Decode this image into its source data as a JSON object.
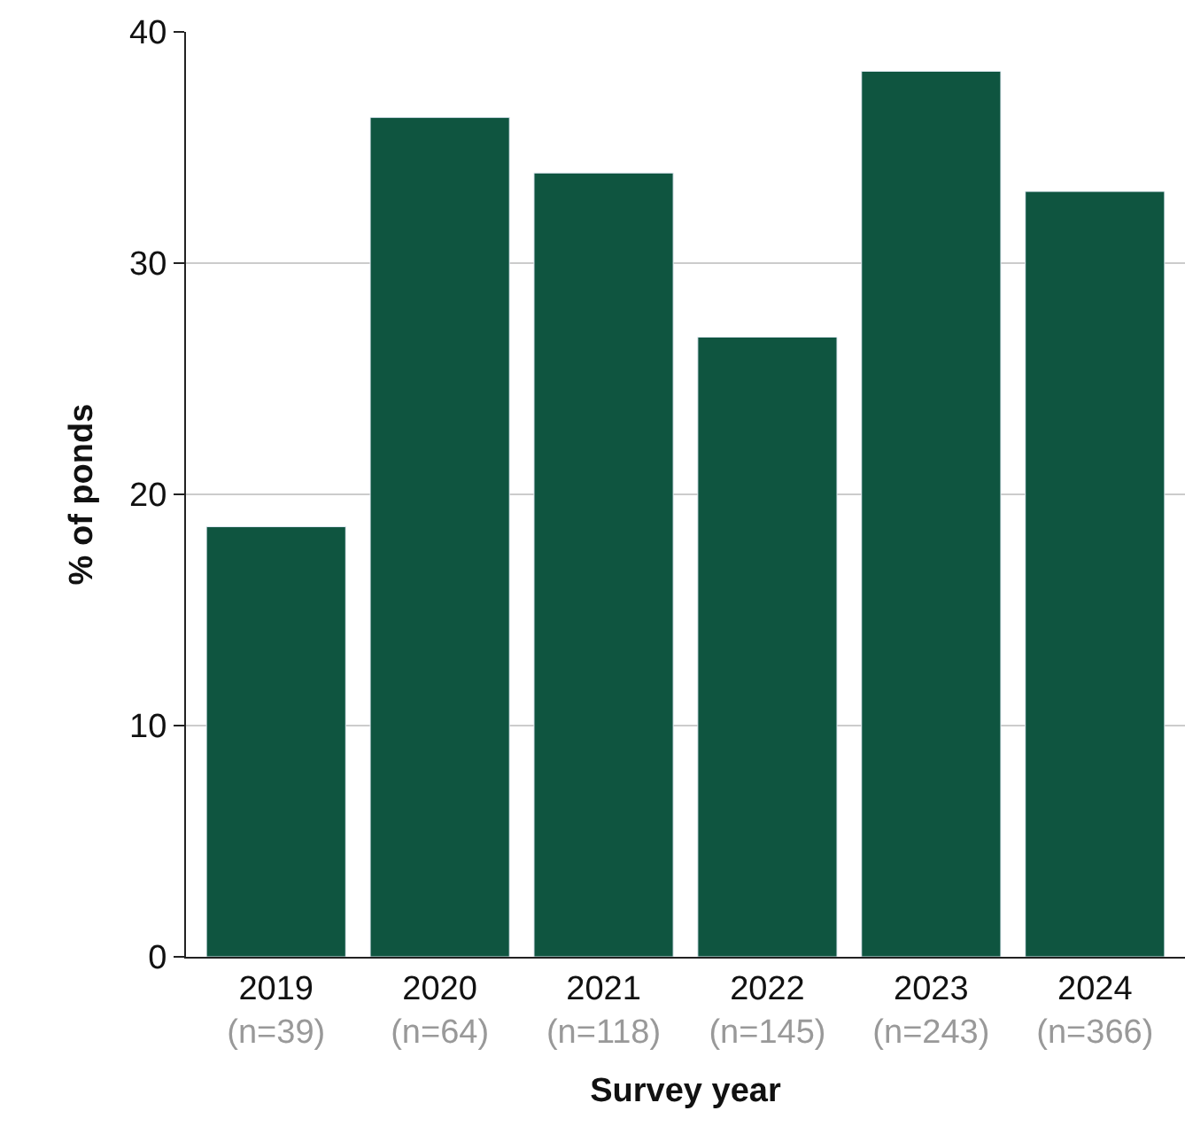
{
  "chart_data": {
    "type": "bar",
    "xlabel": "Survey year",
    "ylabel": "% of ponds",
    "categories": [
      "2019\n(n=39)",
      "2020\n(n=64)",
      "2021\n(n=118)",
      "2022\n(n=145)",
      "2023\n(n=243)",
      "2024\n(n=366)"
    ],
    "values": [
      18.6,
      36.3,
      33.9,
      26.8,
      38.3,
      33.1
    ],
    "color": "#0f5540",
    "ylim": [
      0,
      40
    ],
    "yticks": [
      0,
      10,
      20,
      30,
      40
    ],
    "grid": "y"
  }
}
